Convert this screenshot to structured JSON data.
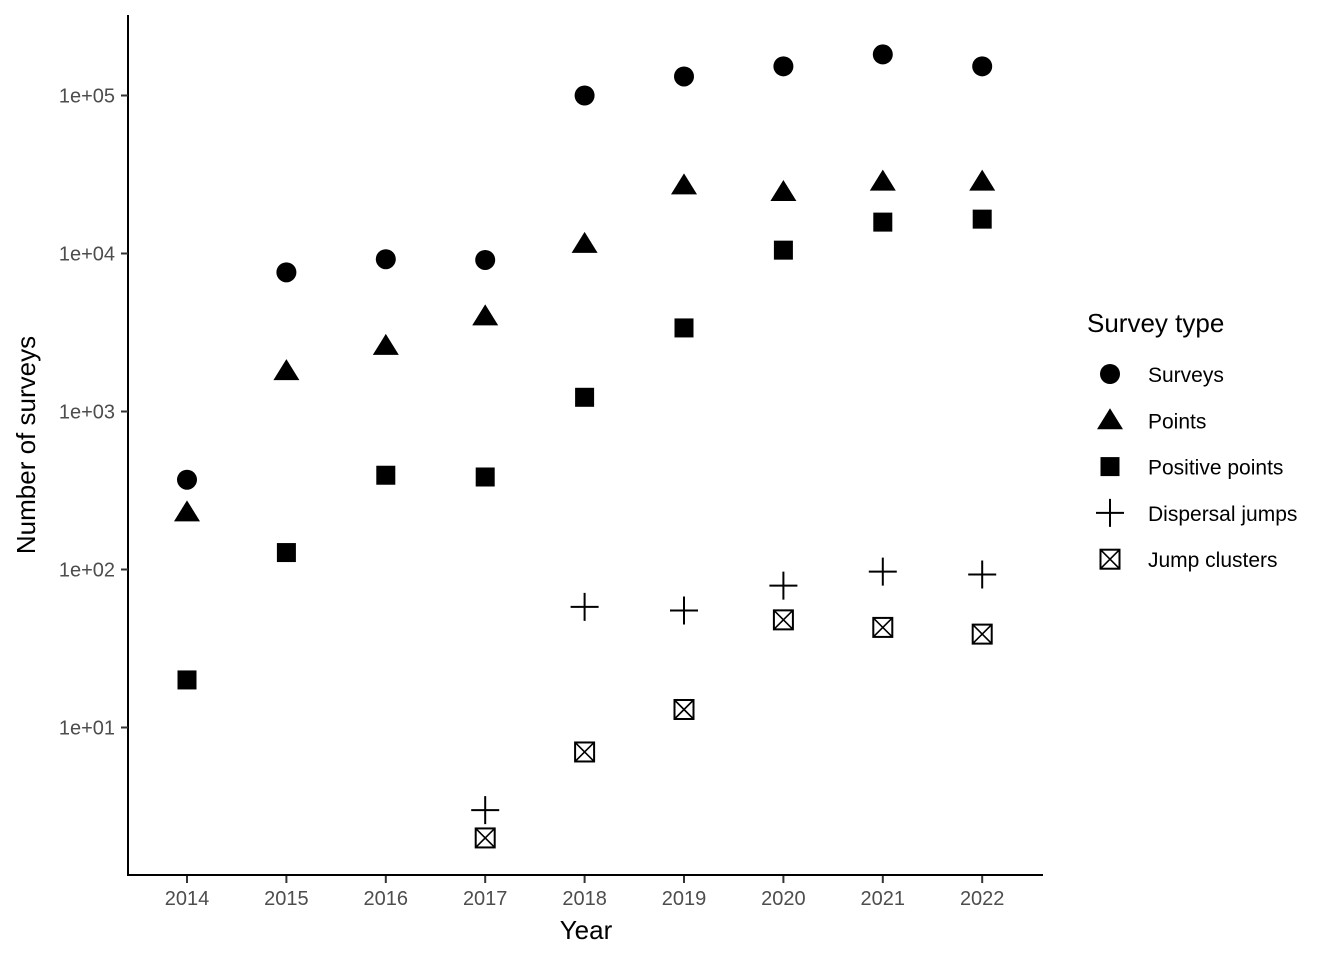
{
  "chart_data": {
    "type": "scatter",
    "title": "",
    "xlabel": "Year",
    "ylabel": "Number of surveys",
    "y_scale": "log10",
    "ylim": [
      1.2,
      350000
    ],
    "x_ticks": [
      "2014",
      "2015",
      "2016",
      "2017",
      "2018",
      "2019",
      "2020",
      "2021",
      "2022"
    ],
    "y_ticks": [
      {
        "value": 10,
        "label": "1e+01"
      },
      {
        "value": 100,
        "label": "1e+02"
      },
      {
        "value": 1000,
        "label": "1e+03"
      },
      {
        "value": 10000,
        "label": "1e+04"
      },
      {
        "value": 100000,
        "label": "1e+05"
      }
    ],
    "grid": false,
    "legend": {
      "title": "Survey type",
      "position": "right"
    },
    "series": [
      {
        "name": "Surveys",
        "shape": "circle",
        "points": [
          [
            2014,
            370
          ],
          [
            2015,
            7600
          ],
          [
            2016,
            9200
          ],
          [
            2017,
            9100
          ],
          [
            2018,
            100000
          ],
          [
            2019,
            132000
          ],
          [
            2020,
            153000
          ],
          [
            2021,
            182000
          ],
          [
            2022,
            153000
          ]
        ]
      },
      {
        "name": "Points",
        "shape": "triangle",
        "points": [
          [
            2014,
            230
          ],
          [
            2015,
            1800
          ],
          [
            2016,
            2600
          ],
          [
            2017,
            4000
          ],
          [
            2018,
            11500
          ],
          [
            2019,
            27000
          ],
          [
            2020,
            24500
          ],
          [
            2021,
            28500
          ],
          [
            2022,
            28500
          ]
        ]
      },
      {
        "name": "Positive points",
        "shape": "square",
        "points": [
          [
            2014,
            20
          ],
          [
            2015,
            128
          ],
          [
            2016,
            395
          ],
          [
            2017,
            385
          ],
          [
            2018,
            1230
          ],
          [
            2019,
            3380
          ],
          [
            2020,
            10500
          ],
          [
            2021,
            15800
          ],
          [
            2022,
            16500
          ]
        ]
      },
      {
        "name": "Dispersal jumps",
        "shape": "plus",
        "points": [
          [
            2017,
            3
          ],
          [
            2018,
            58
          ],
          [
            2019,
            55
          ],
          [
            2020,
            79
          ],
          [
            2021,
            97
          ],
          [
            2022,
            93
          ]
        ]
      },
      {
        "name": "Jump clusters",
        "shape": "boxx",
        "points": [
          [
            2017,
            2
          ],
          [
            2018,
            7
          ],
          [
            2019,
            13
          ],
          [
            2020,
            48
          ],
          [
            2021,
            43
          ],
          [
            2022,
            39
          ]
        ]
      }
    ]
  }
}
